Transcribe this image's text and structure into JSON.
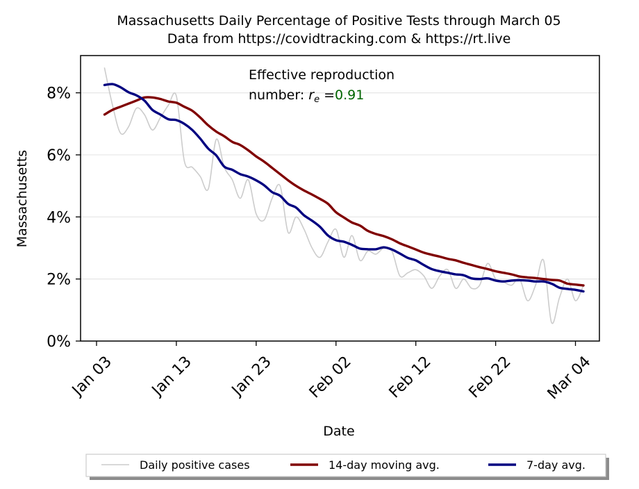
{
  "chart_data": {
    "type": "line",
    "title": "Massachusetts Daily Percentage of Positive Tests through March 05",
    "subtitle": "Data from https://covidtracking.com & https://rt.live",
    "xlabel": "Date",
    "ylabel": "Massachusetts",
    "ylim": [
      0,
      9.2
    ],
    "y_unit": "%",
    "yticks": [
      0,
      2,
      4,
      6,
      8
    ],
    "ytick_labels": [
      "0%",
      "2%",
      "4%",
      "6%",
      "8%"
    ],
    "xlim": [
      "2021-01-01",
      "2021-03-07"
    ],
    "xticks": [
      "2021-01-03",
      "2021-01-13",
      "2021-01-23",
      "2021-02-02",
      "2021-02-12",
      "2021-02-22",
      "2021-03-04"
    ],
    "xtick_labels": [
      "Jan 03",
      "Jan 13",
      "Jan 23",
      "Feb 02",
      "Feb 12",
      "Feb 22",
      "Mar 04"
    ],
    "grid": "y",
    "annotation": {
      "line1": "Effective reproduction",
      "line2_prefix": "number: ",
      "symbol": "r",
      "subscript": "e",
      "equals": " =",
      "value": "0.91",
      "value_color": "#006400"
    },
    "legend": {
      "placement": "bottom-center"
    },
    "series": [
      {
        "name": "Daily positive cases",
        "color": "#cccccc",
        "x": [
          "2021-01-04",
          "2021-01-05",
          "2021-01-06",
          "2021-01-07",
          "2021-01-08",
          "2021-01-09",
          "2021-01-10",
          "2021-01-11",
          "2021-01-12",
          "2021-01-13",
          "2021-01-14",
          "2021-01-15",
          "2021-01-16",
          "2021-01-17",
          "2021-01-18",
          "2021-01-19",
          "2021-01-20",
          "2021-01-21",
          "2021-01-22",
          "2021-01-23",
          "2021-01-24",
          "2021-01-25",
          "2021-01-26",
          "2021-01-27",
          "2021-01-28",
          "2021-01-29",
          "2021-01-30",
          "2021-01-31",
          "2021-02-01",
          "2021-02-02",
          "2021-02-03",
          "2021-02-04",
          "2021-02-05",
          "2021-02-06",
          "2021-02-07",
          "2021-02-08",
          "2021-02-09",
          "2021-02-10",
          "2021-02-11",
          "2021-02-12",
          "2021-02-13",
          "2021-02-14",
          "2021-02-15",
          "2021-02-16",
          "2021-02-17",
          "2021-02-18",
          "2021-02-19",
          "2021-02-20",
          "2021-02-21",
          "2021-02-22",
          "2021-02-23",
          "2021-02-24",
          "2021-02-25",
          "2021-02-26",
          "2021-02-27",
          "2021-02-28",
          "2021-03-01",
          "2021-03-02",
          "2021-03-03",
          "2021-03-04",
          "2021-03-05"
        ],
        "values": [
          8.8,
          7.6,
          6.7,
          6.9,
          7.5,
          7.3,
          6.8,
          7.2,
          7.6,
          7.9,
          5.8,
          5.6,
          5.3,
          4.9,
          6.5,
          5.6,
          5.2,
          4.6,
          5.2,
          4.1,
          3.9,
          4.6,
          5.0,
          3.5,
          4.0,
          3.6,
          3.0,
          2.7,
          3.2,
          3.6,
          2.7,
          3.4,
          2.6,
          2.9,
          2.8,
          3.0,
          2.9,
          2.1,
          2.2,
          2.3,
          2.1,
          1.7,
          2.1,
          2.3,
          1.7,
          2.0,
          1.7,
          1.8,
          2.5,
          2.0,
          1.9,
          1.8,
          2.0,
          1.3,
          1.8,
          2.6,
          0.6,
          1.4,
          2.0,
          1.3,
          1.8
        ]
      },
      {
        "name": "14-day moving avg.",
        "color": "#800000",
        "x": [
          "2021-01-04",
          "2021-01-05",
          "2021-01-06",
          "2021-01-07",
          "2021-01-08",
          "2021-01-09",
          "2021-01-10",
          "2021-01-11",
          "2021-01-12",
          "2021-01-13",
          "2021-01-14",
          "2021-01-15",
          "2021-01-16",
          "2021-01-17",
          "2021-01-18",
          "2021-01-19",
          "2021-01-20",
          "2021-01-21",
          "2021-01-22",
          "2021-01-23",
          "2021-01-24",
          "2021-01-25",
          "2021-01-26",
          "2021-01-27",
          "2021-01-28",
          "2021-01-29",
          "2021-01-30",
          "2021-01-31",
          "2021-02-01",
          "2021-02-02",
          "2021-02-03",
          "2021-02-04",
          "2021-02-05",
          "2021-02-06",
          "2021-02-07",
          "2021-02-08",
          "2021-02-09",
          "2021-02-10",
          "2021-02-11",
          "2021-02-12",
          "2021-02-13",
          "2021-02-14",
          "2021-02-15",
          "2021-02-16",
          "2021-02-17",
          "2021-02-18",
          "2021-02-19",
          "2021-02-20",
          "2021-02-21",
          "2021-02-22",
          "2021-02-23",
          "2021-02-24",
          "2021-02-25",
          "2021-02-26",
          "2021-02-27",
          "2021-02-28",
          "2021-03-01",
          "2021-03-02",
          "2021-03-03",
          "2021-03-04",
          "2021-03-05"
        ],
        "values": [
          7.3,
          7.45,
          7.55,
          7.65,
          7.75,
          7.85,
          7.85,
          7.8,
          7.72,
          7.68,
          7.55,
          7.42,
          7.2,
          6.95,
          6.75,
          6.6,
          6.42,
          6.32,
          6.15,
          5.95,
          5.78,
          5.58,
          5.38,
          5.18,
          5.0,
          4.85,
          4.72,
          4.58,
          4.42,
          4.15,
          3.98,
          3.82,
          3.72,
          3.55,
          3.45,
          3.38,
          3.28,
          3.15,
          3.05,
          2.95,
          2.85,
          2.78,
          2.72,
          2.65,
          2.6,
          2.52,
          2.45,
          2.38,
          2.32,
          2.25,
          2.2,
          2.15,
          2.08,
          2.05,
          2.03,
          2.0,
          1.97,
          1.95,
          1.85,
          1.82,
          1.79
        ]
      },
      {
        "name": "7-day avg.",
        "color": "#000080",
        "x": [
          "2021-01-04",
          "2021-01-05",
          "2021-01-06",
          "2021-01-07",
          "2021-01-08",
          "2021-01-09",
          "2021-01-10",
          "2021-01-11",
          "2021-01-12",
          "2021-01-13",
          "2021-01-14",
          "2021-01-15",
          "2021-01-16",
          "2021-01-17",
          "2021-01-18",
          "2021-01-19",
          "2021-01-20",
          "2021-01-21",
          "2021-01-22",
          "2021-01-23",
          "2021-01-24",
          "2021-01-25",
          "2021-01-26",
          "2021-01-27",
          "2021-01-28",
          "2021-01-29",
          "2021-01-30",
          "2021-01-31",
          "2021-02-01",
          "2021-02-02",
          "2021-02-03",
          "2021-02-04",
          "2021-02-05",
          "2021-02-06",
          "2021-02-07",
          "2021-02-08",
          "2021-02-09",
          "2021-02-10",
          "2021-02-11",
          "2021-02-12",
          "2021-02-13",
          "2021-02-14",
          "2021-02-15",
          "2021-02-16",
          "2021-02-17",
          "2021-02-18",
          "2021-02-19",
          "2021-02-20",
          "2021-02-21",
          "2021-02-22",
          "2021-02-23",
          "2021-02-24",
          "2021-02-25",
          "2021-02-26",
          "2021-02-27",
          "2021-02-28",
          "2021-03-01",
          "2021-03-02",
          "2021-03-03",
          "2021-03-04",
          "2021-03-05"
        ],
        "values": [
          8.25,
          8.28,
          8.18,
          8.02,
          7.92,
          7.75,
          7.45,
          7.3,
          7.15,
          7.12,
          7.0,
          6.8,
          6.52,
          6.2,
          5.98,
          5.62,
          5.52,
          5.38,
          5.3,
          5.18,
          5.02,
          4.8,
          4.68,
          4.42,
          4.3,
          4.05,
          3.88,
          3.68,
          3.4,
          3.25,
          3.2,
          3.1,
          2.98,
          2.96,
          2.96,
          3.02,
          2.95,
          2.82,
          2.68,
          2.6,
          2.45,
          2.32,
          2.25,
          2.2,
          2.15,
          2.12,
          2.02,
          2.0,
          2.02,
          1.95,
          1.92,
          1.95,
          1.96,
          1.95,
          1.92,
          1.92,
          1.85,
          1.72,
          1.68,
          1.65,
          1.6
        ]
      }
    ]
  }
}
